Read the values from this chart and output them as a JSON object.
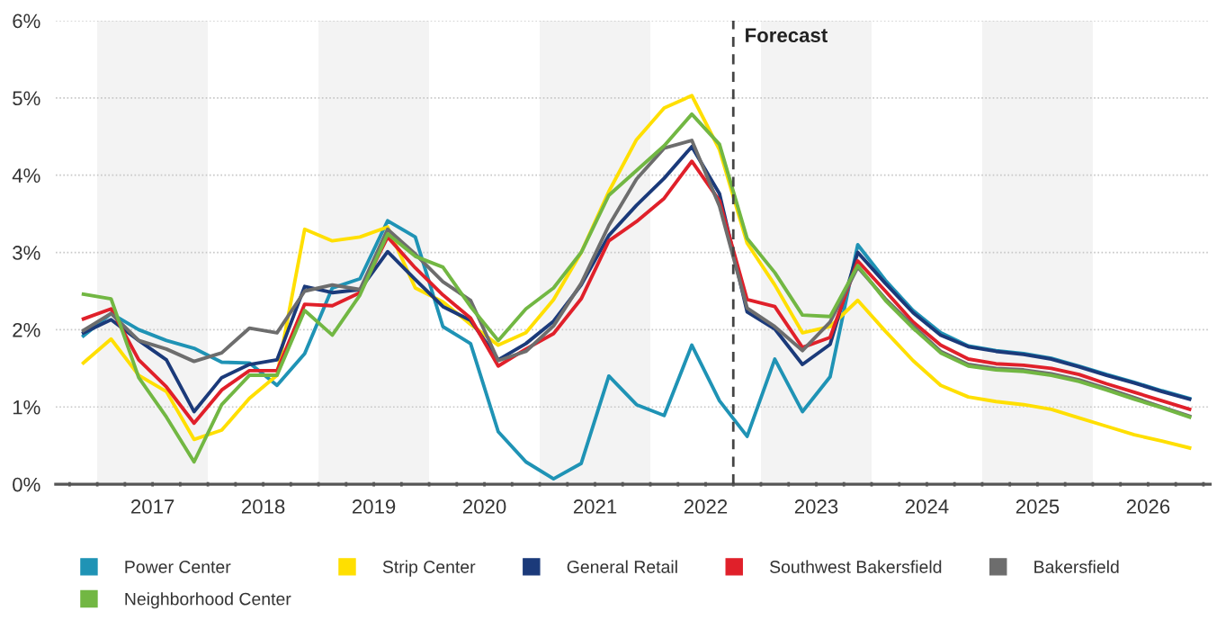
{
  "chart_data": {
    "type": "line",
    "x": [
      2016.875,
      2017.125,
      2017.375,
      2017.625,
      2017.875,
      2018.125,
      2018.375,
      2018.625,
      2018.875,
      2019.125,
      2019.375,
      2019.625,
      2019.875,
      2020.125,
      2020.375,
      2020.625,
      2020.875,
      2021.125,
      2021.375,
      2021.625,
      2021.875,
      2022.125,
      2022.375,
      2022.625,
      2022.875,
      2023.125,
      2023.375,
      2023.625,
      2023.875,
      2024.125,
      2024.375,
      2024.625,
      2024.875,
      2025.125,
      2025.375,
      2025.625,
      2025.875,
      2026.125,
      2026.375,
      2026.625,
      2026.875
    ],
    "series": [
      {
        "name": "Power Center",
        "color": "#1f93b5",
        "values": [
          1.92,
          2.21,
          2.0,
          1.86,
          1.76,
          1.58,
          1.57,
          1.28,
          1.69,
          2.54,
          2.66,
          3.41,
          3.2,
          2.04,
          1.82,
          0.68,
          0.29,
          0.07,
          0.27,
          1.4,
          1.03,
          0.89,
          1.8,
          1.08,
          0.62,
          1.62,
          0.94,
          1.39,
          3.1,
          2.64,
          2.25,
          1.96,
          1.79,
          1.73,
          1.69,
          1.63,
          1.53,
          1.42,
          1.32,
          1.21,
          1.11
        ]
      },
      {
        "name": "Strip Center",
        "color": "#ffdf00",
        "values": [
          1.57,
          1.88,
          1.41,
          1.2,
          0.58,
          0.7,
          1.11,
          1.41,
          3.3,
          3.15,
          3.2,
          3.33,
          2.54,
          2.36,
          2.07,
          1.8,
          1.96,
          2.39,
          3.0,
          3.79,
          4.46,
          4.87,
          5.03,
          4.33,
          3.12,
          2.58,
          1.96,
          2.04,
          2.38,
          1.98,
          1.6,
          1.28,
          1.13,
          1.07,
          1.03,
          0.97,
          0.86,
          0.75,
          0.64,
          0.56,
          0.47
        ]
      },
      {
        "name": "General Retail",
        "color": "#1b3a7a",
        "values": [
          1.96,
          2.13,
          1.86,
          1.61,
          0.94,
          1.38,
          1.55,
          1.61,
          2.56,
          2.48,
          2.52,
          3.01,
          2.65,
          2.3,
          2.12,
          1.61,
          1.82,
          2.11,
          2.58,
          3.22,
          3.61,
          3.96,
          4.37,
          3.76,
          2.23,
          2.01,
          1.55,
          1.81,
          3.0,
          2.6,
          2.22,
          1.93,
          1.78,
          1.72,
          1.68,
          1.62,
          1.52,
          1.41,
          1.31,
          1.2,
          1.1
        ]
      },
      {
        "name": "Southwest Bakersfield",
        "color": "#e0202a",
        "values": [
          2.14,
          2.27,
          1.61,
          1.26,
          0.79,
          1.22,
          1.47,
          1.47,
          2.33,
          2.31,
          2.48,
          3.2,
          2.8,
          2.45,
          2.15,
          1.53,
          1.75,
          1.95,
          2.4,
          3.15,
          3.4,
          3.7,
          4.18,
          3.67,
          2.39,
          2.3,
          1.77,
          1.9,
          2.89,
          2.5,
          2.1,
          1.8,
          1.62,
          1.56,
          1.54,
          1.5,
          1.42,
          1.3,
          1.19,
          1.08,
          0.97
        ]
      },
      {
        "name": "Bakersfield",
        "color": "#6d6d6d",
        "values": [
          1.99,
          2.21,
          1.86,
          1.75,
          1.59,
          1.7,
          2.02,
          1.96,
          2.5,
          2.58,
          2.52,
          3.3,
          2.98,
          2.62,
          2.38,
          1.6,
          1.72,
          2.05,
          2.6,
          3.35,
          3.95,
          4.35,
          4.45,
          3.6,
          2.28,
          2.04,
          1.73,
          2.1,
          2.81,
          2.4,
          2.05,
          1.72,
          1.55,
          1.5,
          1.48,
          1.43,
          1.35,
          1.24,
          1.12,
          1.0,
          0.88
        ]
      },
      {
        "name": "Neighborhood Center",
        "color": "#72b743",
        "values": [
          2.46,
          2.4,
          1.38,
          0.87,
          0.29,
          1.03,
          1.41,
          1.41,
          2.25,
          1.93,
          2.45,
          3.24,
          2.95,
          2.81,
          2.3,
          1.86,
          2.27,
          2.54,
          3.0,
          3.74,
          4.06,
          4.38,
          4.79,
          4.4,
          3.18,
          2.74,
          2.19,
          2.17,
          2.83,
          2.38,
          2.02,
          1.7,
          1.53,
          1.48,
          1.46,
          1.41,
          1.33,
          1.22,
          1.1,
          0.99,
          0.87
        ]
      }
    ],
    "xlim": [
      2016.625,
      2027.06
    ],
    "xticks": [
      {
        "value": 2016.75,
        "label": null
      },
      {
        "value": 2017,
        "label": null
      },
      {
        "value": 2017.25,
        "label": null
      },
      {
        "value": 2017.5,
        "label": "2017"
      },
      {
        "value": 2017.75,
        "label": null
      },
      {
        "value": 2018,
        "label": null
      },
      {
        "value": 2018.25,
        "label": null
      },
      {
        "value": 2018.5,
        "label": "2018"
      },
      {
        "value": 2018.75,
        "label": null
      },
      {
        "value": 2019,
        "label": null
      },
      {
        "value": 2019.25,
        "label": null
      },
      {
        "value": 2019.5,
        "label": "2019"
      },
      {
        "value": 2019.75,
        "label": null
      },
      {
        "value": 2020,
        "label": null
      },
      {
        "value": 2020.25,
        "label": null
      },
      {
        "value": 2020.5,
        "label": "2020"
      },
      {
        "value": 2020.75,
        "label": null
      },
      {
        "value": 2021,
        "label": null
      },
      {
        "value": 2021.25,
        "label": null
      },
      {
        "value": 2021.5,
        "label": "2021"
      },
      {
        "value": 2021.75,
        "label": null
      },
      {
        "value": 2022,
        "label": null
      },
      {
        "value": 2022.25,
        "label": null
      },
      {
        "value": 2022.5,
        "label": "2022"
      },
      {
        "value": 2022.75,
        "label": null
      },
      {
        "value": 2023,
        "label": null
      },
      {
        "value": 2023.25,
        "label": null
      },
      {
        "value": 2023.5,
        "label": "2023"
      },
      {
        "value": 2023.75,
        "label": null
      },
      {
        "value": 2024,
        "label": null
      },
      {
        "value": 2024.25,
        "label": null
      },
      {
        "value": 2024.5,
        "label": "2024"
      },
      {
        "value": 2024.75,
        "label": null
      },
      {
        "value": 2025,
        "label": null
      },
      {
        "value": 2025.25,
        "label": null
      },
      {
        "value": 2025.5,
        "label": "2025"
      },
      {
        "value": 2025.75,
        "label": null
      },
      {
        "value": 2026,
        "label": null
      },
      {
        "value": 2026.25,
        "label": null
      },
      {
        "value": 2026.5,
        "label": "2026"
      },
      {
        "value": 2026.75,
        "label": null
      },
      {
        "value": 2027,
        "label": null
      }
    ],
    "ylim": [
      0,
      6
    ],
    "yticks": [
      {
        "value": 0,
        "label": "0%"
      },
      {
        "value": 1,
        "label": "1%"
      },
      {
        "value": 2,
        "label": "2%"
      },
      {
        "value": 3,
        "label": "3%"
      },
      {
        "value": 4,
        "label": "4%"
      },
      {
        "value": 5,
        "label": "5%"
      },
      {
        "value": 6,
        "label": "6%"
      }
    ],
    "ref_lines": [
      {
        "axis": "x",
        "value": 2022.75,
        "label": "Forecast",
        "color": "#444444",
        "line_style": "dashed"
      }
    ],
    "bands": [
      {
        "axis": "x",
        "from": 2017,
        "to": 2018,
        "color": "#f3f3f3"
      },
      {
        "axis": "x",
        "from": 2019,
        "to": 2020,
        "color": "#f3f3f3"
      },
      {
        "axis": "x",
        "from": 2021,
        "to": 2022,
        "color": "#f3f3f3"
      },
      {
        "axis": "x",
        "from": 2023,
        "to": 2024,
        "color": "#f3f3f3"
      },
      {
        "axis": "x",
        "from": 2025,
        "to": 2026,
        "color": "#f3f3f3"
      }
    ],
    "grid": "y",
    "legend": "bottom",
    "marker": "none",
    "line_style": "solid"
  }
}
